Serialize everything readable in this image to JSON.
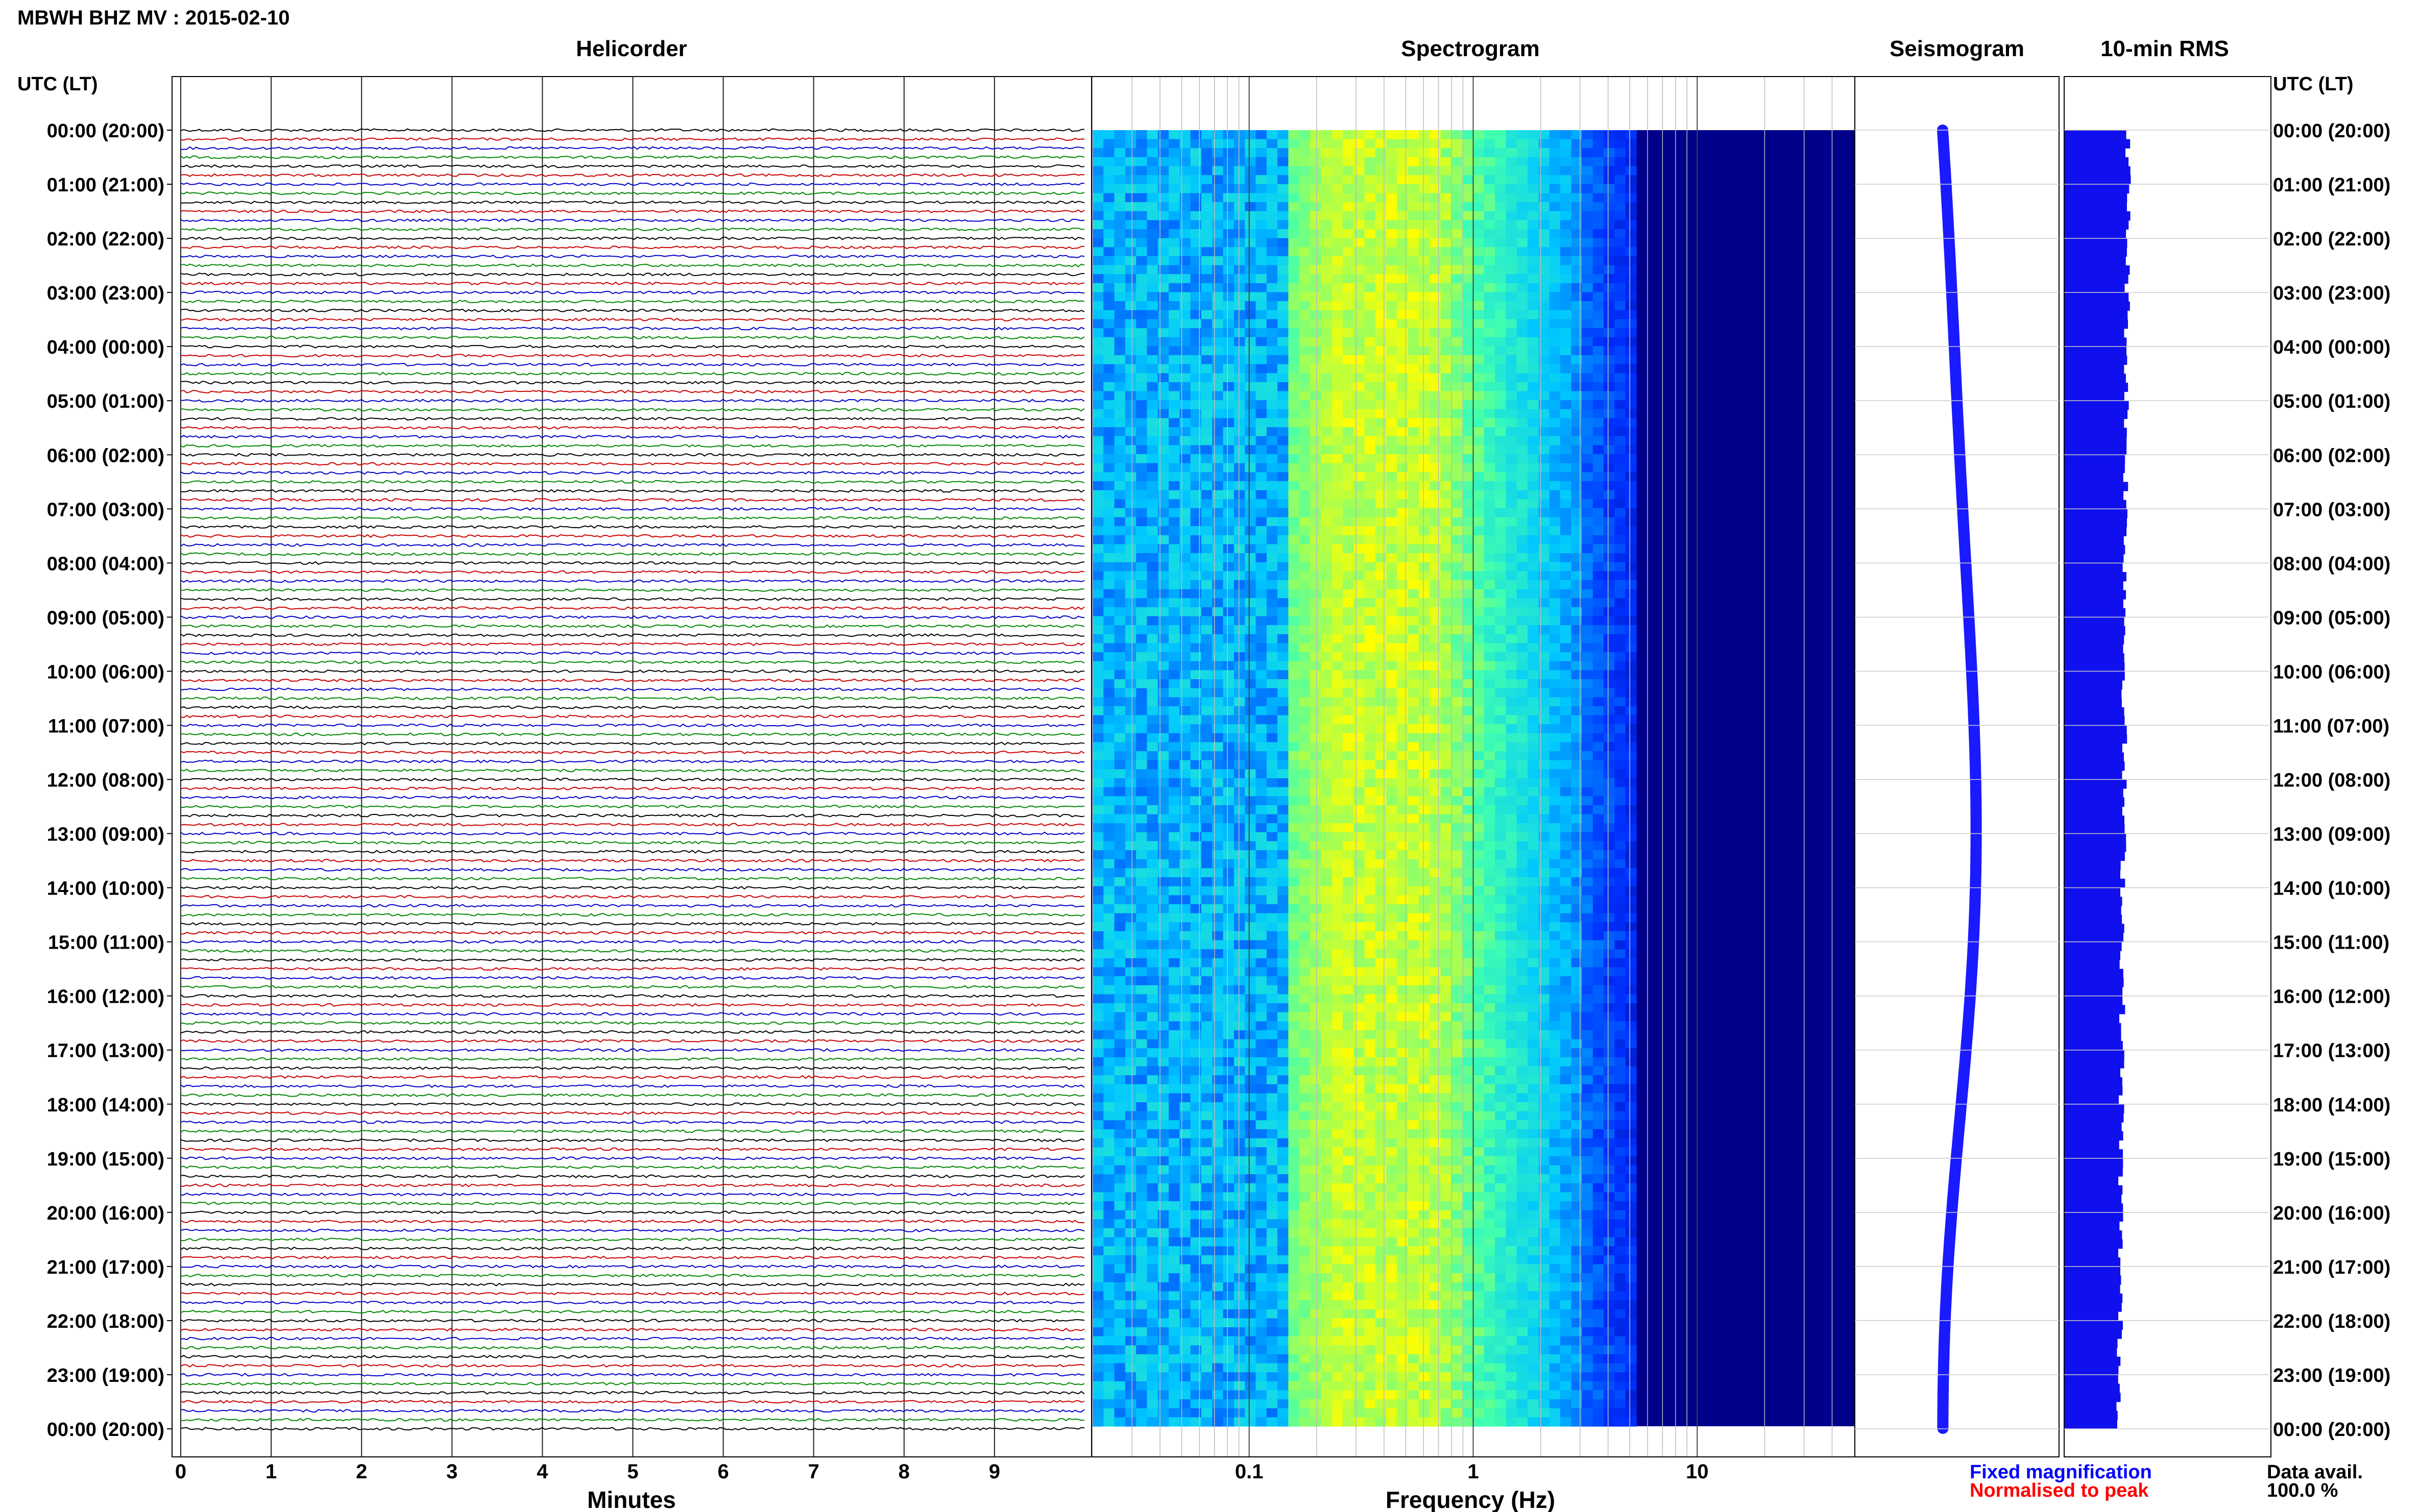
{
  "header": {
    "title": "MBWH BHZ MV : 2015-02-10"
  },
  "time_axis": {
    "label": "UTC (LT)",
    "ticks": [
      "00:00 (20:00)",
      "01:00 (21:00)",
      "02:00 (22:00)",
      "03:00 (23:00)",
      "04:00 (00:00)",
      "05:00 (01:00)",
      "06:00 (02:00)",
      "07:00 (03:00)",
      "08:00 (04:00)",
      "09:00 (05:00)",
      "10:00 (06:00)",
      "11:00 (07:00)",
      "12:00 (08:00)",
      "13:00 (09:00)",
      "14:00 (10:00)",
      "15:00 (11:00)",
      "16:00 (12:00)",
      "17:00 (13:00)",
      "18:00 (14:00)",
      "19:00 (15:00)",
      "20:00 (16:00)",
      "21:00 (17:00)",
      "22:00 (18:00)",
      "23:00 (19:00)",
      "00:00 (20:00)"
    ]
  },
  "footer": {
    "legend_fixed": "Fixed magnification",
    "legend_normalised": "Normalised to peak",
    "data_avail_label": "Data avail.",
    "data_avail_value": "100.0 %"
  },
  "colors": {
    "trace_cycle": [
      "#000000",
      "#cc0000",
      "#0000cc",
      "#008800"
    ],
    "seismogram": "#1a1aff",
    "rms": "#1010ee",
    "legend_fixed": "#0000ff",
    "legend_normalised": "#ff0000"
  },
  "chart_data": [
    {
      "type": "line",
      "title": "Helicorder",
      "xlabel": "Minutes",
      "x_ticks": [
        "0",
        "1",
        "2",
        "3",
        "4",
        "5",
        "6",
        "7",
        "8",
        "9"
      ],
      "xlim": [
        0,
        10
      ],
      "traces_per_hour": 6,
      "minutes_per_trace": 10
    },
    {
      "type": "heatmap",
      "title": "Spectrogram",
      "xlabel": "Frequency (Hz)",
      "x_scale": "log",
      "x_ticks": [
        "0.1",
        "1",
        "10"
      ],
      "xlim": [
        0.02,
        50
      ],
      "colormap": [
        "#00008b",
        "#0030ff",
        "#00c8ff",
        "#40ffb0",
        "#ffff00"
      ]
    },
    {
      "type": "line",
      "title": "Seismogram"
    },
    {
      "type": "bar",
      "title": "10-min RMS"
    }
  ]
}
